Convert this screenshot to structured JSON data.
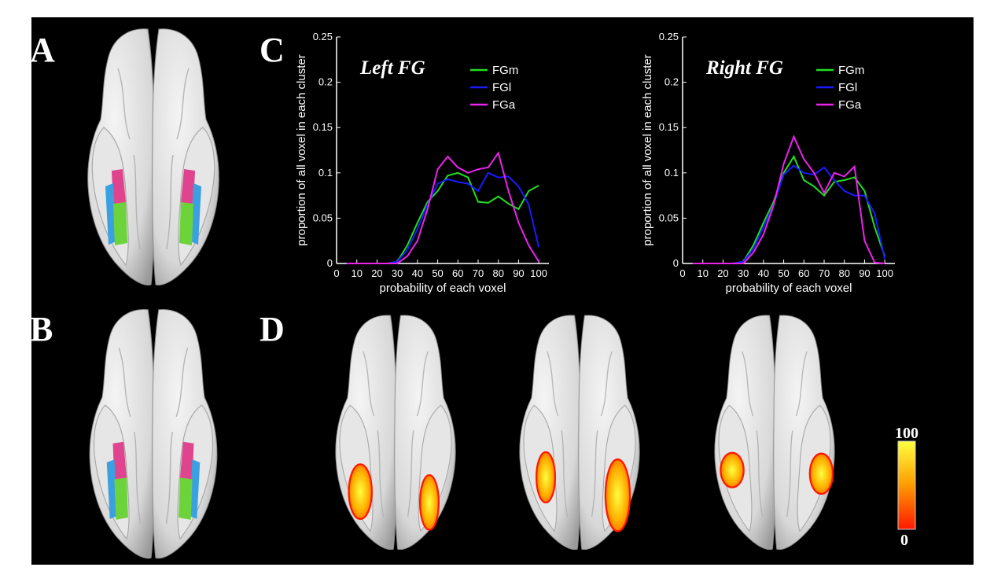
{
  "panels": {
    "a": "A",
    "b": "B",
    "c": "C",
    "d": "D"
  },
  "colors": {
    "FGm": "#22dd22",
    "FGl": "#1a1aff",
    "FGa": "#ee22ee",
    "cluster_pink": "#e0448f",
    "cluster_blue": "#3aa0e0",
    "cluster_green": "#6cd43a",
    "heat_low": "#ff1800",
    "heat_high": "#ffff40"
  },
  "colorbar": {
    "max_label": "100",
    "min_label": "0"
  },
  "chart_data": [
    {
      "type": "line",
      "title": "Left FG",
      "xlabel": "probability of each voxel",
      "ylabel": "proportion of all voxel in each cluster",
      "xlim": [
        0,
        105
      ],
      "ylim": [
        0,
        0.25
      ],
      "xticks": [
        "0",
        "10",
        "20",
        "30",
        "40",
        "50",
        "60",
        "70",
        "80",
        "90",
        "100"
      ],
      "yticks": [
        "0",
        "0.05",
        "0.1",
        "0.15",
        "0.2",
        "0.25"
      ],
      "legend": "top-right",
      "x": [
        5,
        10,
        15,
        20,
        25,
        30,
        35,
        40,
        45,
        50,
        55,
        60,
        65,
        70,
        75,
        80,
        85,
        90,
        95,
        100
      ],
      "series": [
        {
          "name": "FGm",
          "color": "#22dd22",
          "values": [
            0,
            0,
            0,
            0,
            0,
            0.002,
            0.02,
            0.045,
            0.068,
            0.08,
            0.097,
            0.1,
            0.095,
            0.068,
            0.067,
            0.074,
            0.066,
            0.06,
            0.08,
            0.086
          ]
        },
        {
          "name": "FGl",
          "color": "#1a1aff",
          "values": [
            0,
            0,
            0,
            0,
            0,
            0.002,
            0.015,
            0.038,
            0.065,
            0.088,
            0.093,
            0.09,
            0.088,
            0.08,
            0.1,
            0.095,
            0.096,
            0.085,
            0.065,
            0.018
          ]
        },
        {
          "name": "FGa",
          "color": "#ee22ee",
          "values": [
            0,
            0,
            0,
            0,
            0,
            0,
            0.008,
            0.025,
            0.06,
            0.104,
            0.118,
            0.106,
            0.1,
            0.104,
            0.106,
            0.122,
            0.08,
            0.045,
            0.02,
            0.002
          ]
        }
      ]
    },
    {
      "type": "line",
      "title": "Right FG",
      "xlabel": "probability of each voxel",
      "ylabel": "proportion of all voxel in each cluster",
      "xlim": [
        0,
        105
      ],
      "ylim": [
        0,
        0.25
      ],
      "xticks": [
        "0",
        "10",
        "20",
        "30",
        "40",
        "50",
        "60",
        "70",
        "80",
        "90",
        "100"
      ],
      "yticks": [
        "0",
        "0.05",
        "0.1",
        "0.15",
        "0.2",
        "0.25"
      ],
      "legend": "top-right",
      "x": [
        5,
        10,
        15,
        20,
        25,
        30,
        35,
        40,
        45,
        50,
        55,
        60,
        65,
        70,
        75,
        80,
        85,
        90,
        95,
        100
      ],
      "series": [
        {
          "name": "FGm",
          "color": "#22dd22",
          "values": [
            0,
            0,
            0,
            0,
            0,
            0.002,
            0.02,
            0.045,
            0.068,
            0.1,
            0.118,
            0.092,
            0.085,
            0.075,
            0.09,
            0.092,
            0.095,
            0.08,
            0.04,
            0.008
          ]
        },
        {
          "name": "FGl",
          "color": "#1a1aff",
          "values": [
            0,
            0,
            0,
            0,
            0,
            0.002,
            0.016,
            0.04,
            0.065,
            0.098,
            0.108,
            0.1,
            0.098,
            0.106,
            0.092,
            0.08,
            0.075,
            0.075,
            0.055,
            0.005
          ]
        },
        {
          "name": "FGa",
          "color": "#ee22ee",
          "values": [
            0,
            0,
            0,
            0,
            0,
            0,
            0.012,
            0.032,
            0.064,
            0.11,
            0.14,
            0.115,
            0.1,
            0.078,
            0.1,
            0.096,
            0.107,
            0.025,
            0.001,
            0
          ]
        }
      ]
    }
  ]
}
